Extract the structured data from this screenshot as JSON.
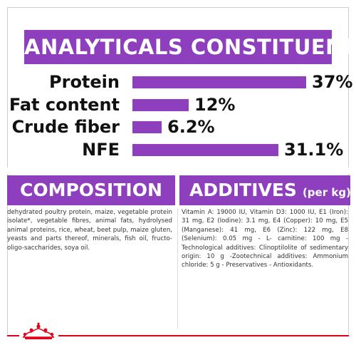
{
  "analytics": {
    "title": "ANALYTICALS CONSTITUENTS",
    "rows": [
      {
        "label": "Protein",
        "value": "37%",
        "fraction": 0.37
      },
      {
        "label": "Fat content",
        "value": "12%",
        "fraction": 0.12
      },
      {
        "label": "Crude fiber",
        "value": "6.2%",
        "fraction": 0.062
      },
      {
        "label": "NFE",
        "value": "31.1%",
        "fraction": 0.311
      }
    ]
  },
  "composition": {
    "title": "COMPOSITION",
    "text": "dehydrated poultry protein, maize, vegetable protein isolate*, vegetable fibres, animal fats, hydrolysed animal proteins, rice, wheat, beet pulp, maize gluten, yeasts and parts thereof, minerals, fish oil, fructo-oligo-saccharides, soya oil."
  },
  "additives": {
    "title": "ADDITIVES",
    "subtitle": "(per kg)",
    "text": "Vitamin A: 19000 IU, Vitamin D3: 1000 IU, E1 (Iron): 31 mg, E2 (Iodine): 3.1 mg, E4 (Copper): 10 mg, E5 (Manganese): 41 mg, E6 (Zinc): 122 mg, E8 (Selenium): 0.05 mg - L- carnitine: 100 mg - Technological additives: Clinoptilolite of sedimentary origin: 10 g -Zootechnical additives: Ammonium chloride: 5 g - Preservatives - Antioxidants."
  },
  "colors": {
    "accent": "#8e3fbd",
    "brand_red": "#e2001a"
  },
  "footer": {
    "logo_icon": "crown-icon"
  }
}
